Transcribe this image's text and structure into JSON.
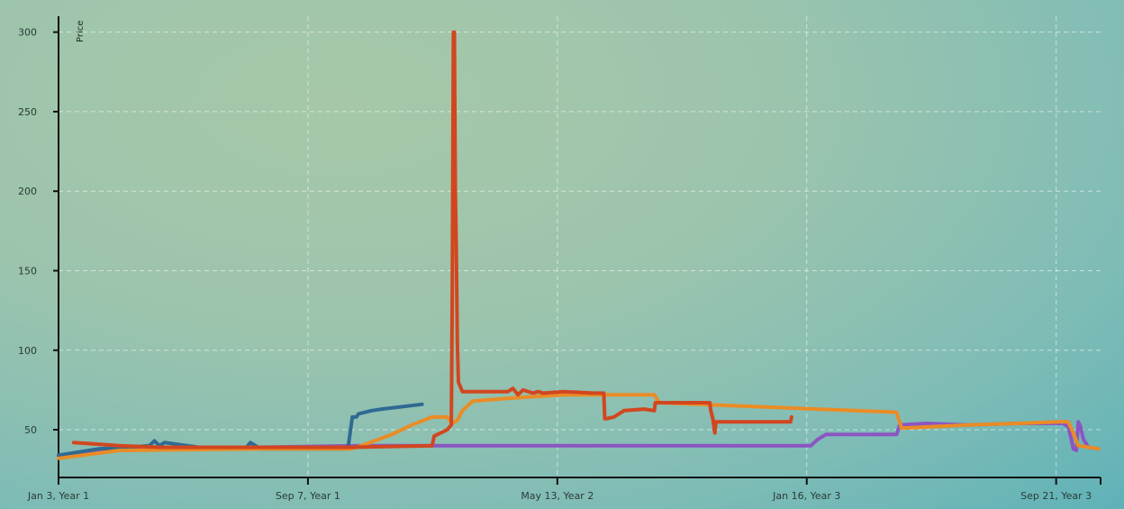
{
  "chart_data": {
    "type": "line",
    "ylabel": "Price",
    "ylim": [
      20,
      310
    ],
    "y_ticks": [
      50,
      100,
      150,
      200,
      250,
      300
    ],
    "x_tick_labels": [
      "Jan 3, Year 1",
      "Sep 7, Year 1",
      "May 13, Year 2",
      "Jan 16, Year 3",
      "Sep 21, Year 3"
    ],
    "x_tick_days": [
      0,
      247,
      494,
      741,
      988
    ],
    "xlim": [
      0,
      1032
    ],
    "grid": true,
    "series": [
      {
        "color": "#2f6a93",
        "x": [
          0,
          40,
          70,
          90,
          95,
          100,
          105,
          150,
          185,
          190,
          200,
          285,
          287,
          291,
          295,
          297,
          310,
          320,
          360
        ],
        "y": [
          34,
          38,
          39,
          40,
          43,
          40,
          42,
          38,
          38,
          42,
          38,
          38,
          40,
          58,
          58,
          60,
          62,
          63,
          66
        ]
      },
      {
        "color": "#d2461f",
        "x": [
          15,
          60,
          100,
          150,
          200,
          250,
          290,
          370,
          372,
          385,
          389,
          390,
          391,
          392,
          393,
          394,
          395,
          396,
          400,
          405,
          420,
          445,
          450,
          455,
          460,
          470,
          475,
          480,
          500,
          530,
          540,
          541,
          543,
          550,
          560,
          580,
          590,
          591,
          645,
          646,
          648,
          650,
          651,
          690,
          725,
          726
        ],
        "y": [
          42,
          40,
          39,
          39,
          39,
          39,
          39,
          40,
          46,
          50,
          53,
          140,
          300,
          300,
          200,
          160,
          105,
          80,
          74,
          74,
          74,
          74,
          76,
          72,
          75,
          73,
          74,
          73,
          74,
          73,
          73,
          57,
          57,
          58,
          62,
          63,
          62,
          67,
          67,
          62,
          57,
          48,
          55,
          55,
          55,
          58
        ]
      },
      {
        "color": "#8c55c2",
        "x": [
          0,
          60,
          200,
          300,
          400,
          500,
          600,
          700,
          745,
          752,
          760,
          800,
          830,
          833,
          860,
          900,
          950,
          995,
          1000,
          1003,
          1005,
          1008,
          1010,
          1012,
          1015,
          1020,
          1030
        ],
        "y": [
          34,
          38,
          39,
          40,
          40,
          40,
          40,
          40,
          40,
          44,
          47,
          47,
          47,
          53,
          54,
          53,
          54,
          54,
          52,
          44,
          38,
          37,
          55,
          52,
          44,
          39,
          38
        ]
      },
      {
        "color": "#ea8c25",
        "x": [
          0,
          60,
          200,
          290,
          300,
          330,
          350,
          370,
          385,
          390,
          395,
          400,
          410,
          450,
          500,
          540,
          590,
          595,
          830,
          835,
          900,
          950,
          990,
          1000,
          1005,
          1010,
          1030
        ],
        "y": [
          32,
          37,
          38,
          38,
          40,
          47,
          53,
          58,
          58,
          54,
          56,
          62,
          68,
          70,
          72,
          72,
          72,
          67,
          61,
          51,
          53,
          54,
          55,
          55,
          48,
          40,
          38
        ]
      }
    ]
  }
}
